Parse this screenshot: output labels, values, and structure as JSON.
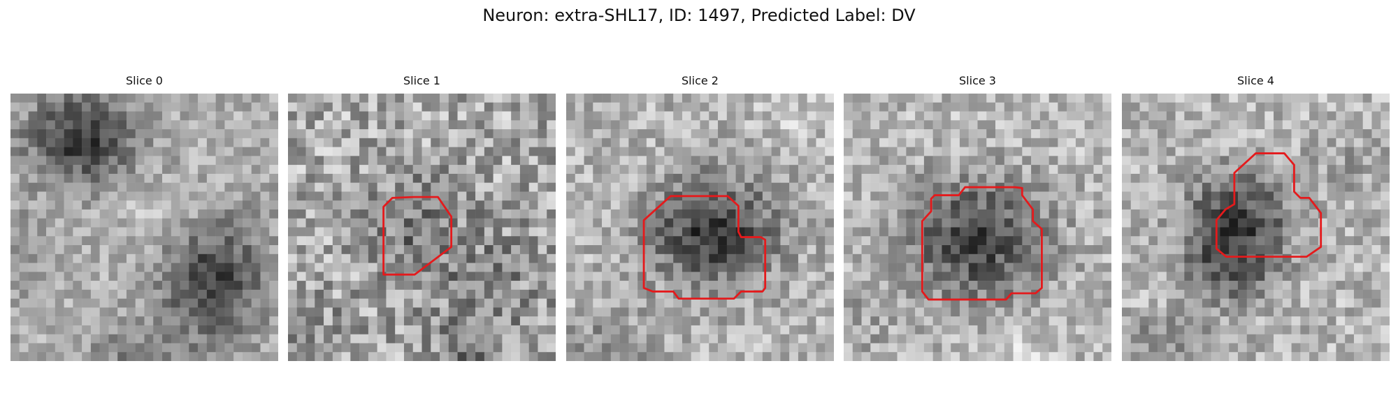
{
  "figure": {
    "title": "Neuron: extra-SHL17, ID: 1497, Predicted Label: DV"
  },
  "colors": {
    "contour": "#e41a1c"
  },
  "panels": [
    {
      "title": "Slice 0",
      "has_contour": false
    },
    {
      "title": "Slice 1",
      "has_contour": true
    },
    {
      "title": "Slice 2",
      "has_contour": true
    },
    {
      "title": "Slice 3",
      "has_contour": true
    },
    {
      "title": "Slice 4",
      "has_contour": true
    }
  ]
}
